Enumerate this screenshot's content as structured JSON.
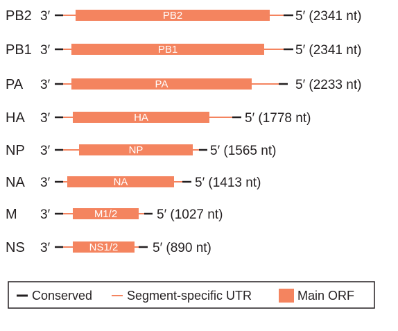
{
  "segments": [
    {
      "name": "PB2",
      "three_prime": "3′",
      "five_prime_label": "5′ (2341 nt)",
      "orf_label": "PB2"
    },
    {
      "name": "PB1",
      "three_prime": "3′",
      "five_prime_label": "5′ (2341 nt)",
      "orf_label": "PB1"
    },
    {
      "name": "PA",
      "three_prime": "3′",
      "five_prime_label": "5′ (2233 nt)",
      "orf_label": "PA"
    },
    {
      "name": "HA",
      "three_prime": "3′",
      "five_prime_label": "5′ (1778 nt)",
      "orf_label": "HA"
    },
    {
      "name": "NP",
      "three_prime": "3′",
      "five_prime_label": "5′ (1565 nt)",
      "orf_label": "NP"
    },
    {
      "name": "NA",
      "three_prime": "3′",
      "five_prime_label": "5′ (1413 nt)",
      "orf_label": "NA"
    },
    {
      "name": "M",
      "three_prime": "3′",
      "five_prime_label": "5′ (1027 nt)",
      "orf_label": "M1/2"
    },
    {
      "name": "NS",
      "three_prime": "3′",
      "five_prime_label": "5′ (890 nt)",
      "orf_label": "NS1/2"
    }
  ],
  "legend": {
    "conserved": "Conserved",
    "utr": "Segment-specific UTR",
    "orf": "Main ORF"
  },
  "colors": {
    "conserved": "#231f20",
    "utr": "#f4845f",
    "orf": "#f4845f",
    "orf_text": "#ffffff"
  }
}
